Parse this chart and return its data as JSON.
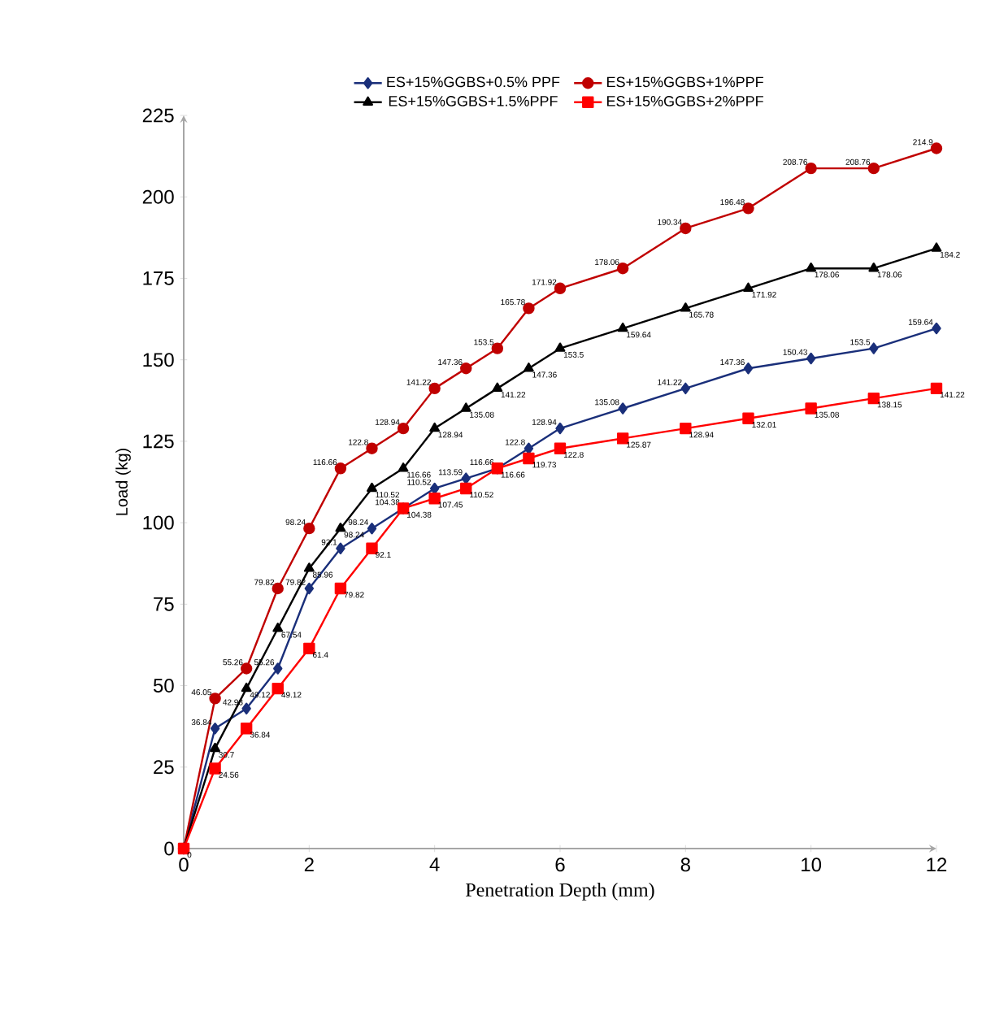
{
  "chart_data": {
    "type": "line",
    "xlabel": "Penetration Depth (mm)",
    "ylabel": "Load (kg)",
    "x": [
      0,
      0.5,
      1,
      1.5,
      2,
      2.5,
      3,
      3.5,
      4,
      4.5,
      5,
      5.5,
      6,
      7,
      8,
      9,
      10,
      11,
      12
    ],
    "series": [
      {
        "name": "ES+15%GGBS+0.5% PPF",
        "color": "#1a2f7a",
        "marker": "diamond",
        "values": [
          0,
          36.84,
          42.98,
          55.26,
          79.82,
          92.1,
          98.24,
          104.38,
          110.52,
          113.59,
          116.66,
          122.8,
          128.94,
          135.08,
          141.22,
          147.36,
          150.43,
          153.5,
          159.64
        ],
        "value_labels": [
          null,
          "36.84",
          "42.98",
          "55.26",
          "79.82",
          "92.1",
          "98.24",
          "104.38",
          "110.52",
          "113.59",
          "116.66",
          "122.8",
          "128.94",
          "135.08",
          "141.22",
          "147.36",
          "150.43",
          "153.5",
          "159.64"
        ]
      },
      {
        "name": "ES+15%GGBS+1%PPF",
        "color": "#c00000",
        "marker": "circle",
        "values": [
          0,
          46.05,
          55.26,
          79.82,
          98.24,
          116.66,
          122.8,
          128.94,
          141.22,
          147.36,
          153.5,
          165.78,
          171.92,
          178.06,
          190.34,
          196.48,
          208.76,
          208.76,
          214.9
        ],
        "value_labels": [
          null,
          "46.05",
          "55.26",
          "79.82",
          "98.24",
          "116.66",
          "122.8",
          "128.94",
          "141.22",
          "147.36",
          "153.5",
          "165.78",
          "171.92",
          "178.06",
          "190.34",
          "196.48",
          "208.76",
          "208.76",
          "214.9"
        ]
      },
      {
        "name": "ES+15%GGBS+1.5%PPF",
        "color": "#000000",
        "marker": "triangle",
        "values": [
          0,
          30.7,
          49.12,
          67.54,
          85.96,
          98.24,
          110.52,
          116.66,
          128.94,
          135.08,
          141.22,
          147.36,
          153.5,
          159.64,
          165.78,
          171.92,
          178.06,
          178.06,
          184.2
        ],
        "value_labels": [
          null,
          "30.7",
          "49.12",
          "67.54",
          "85.96",
          "98.24",
          "110.52",
          "116.66",
          "128.94",
          "135.08",
          "141.22",
          "147.36",
          "153.5",
          "159.64",
          "165.78",
          "171.92",
          "178.06",
          "178.06",
          "184.2"
        ]
      },
      {
        "name": "ES+15%GGBS+2%PPF",
        "color": "#ff0000",
        "marker": "square",
        "values": [
          0,
          24.56,
          36.84,
          49.12,
          61.4,
          79.82,
          92.1,
          104.38,
          107.45,
          110.52,
          116.66,
          119.73,
          122.8,
          125.87,
          128.94,
          132.01,
          135.08,
          138.15,
          141.22
        ],
        "value_labels": [
          "0",
          "24.56",
          "36.84",
          "49.12",
          "61.4",
          "79.82",
          "92.1",
          "104.38",
          "107.45",
          "110.52",
          "116.66",
          "119.73",
          "122.8",
          "125.87",
          "128.94",
          "132.01",
          "135.08",
          "138.15",
          "141.22"
        ]
      }
    ],
    "xlim": [
      0,
      12
    ],
    "ylim": [
      0,
      225
    ],
    "xticks": [
      0,
      2,
      4,
      6,
      8,
      10,
      12
    ],
    "yticks": [
      0,
      25,
      50,
      75,
      100,
      125,
      150,
      175,
      200,
      225
    ],
    "legend": "top",
    "line_style": "solid"
  }
}
